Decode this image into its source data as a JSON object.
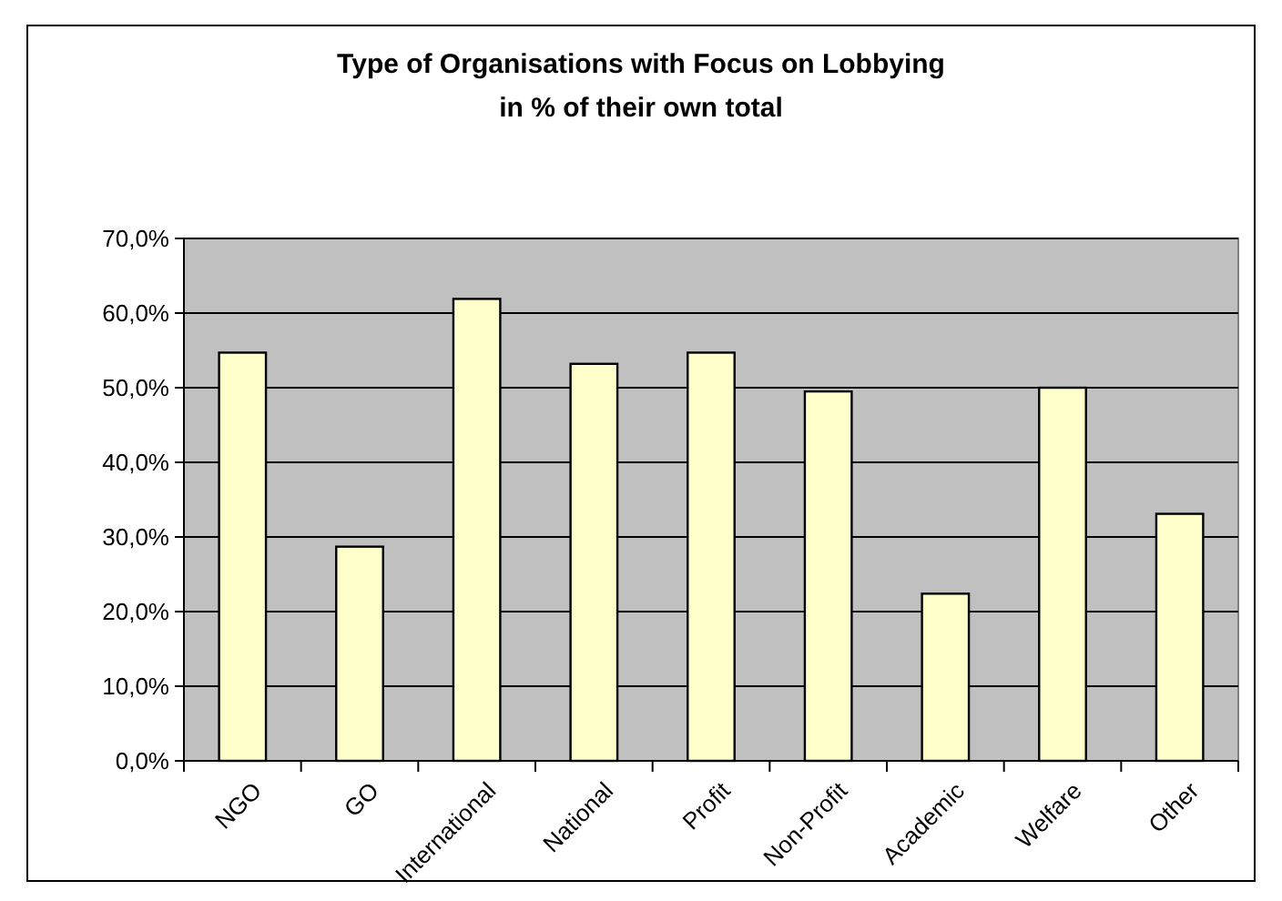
{
  "chart_data": {
    "type": "bar",
    "title": "Type of Organisations with Focus on Lobbying",
    "subtitle": "in % of their own total",
    "categories": [
      "NGO",
      "GO",
      "International",
      "National",
      "Profit",
      "Non-Profit",
      "Academic",
      "Welfare",
      "Other"
    ],
    "values": [
      54.7,
      28.7,
      61.9,
      53.2,
      54.7,
      49.5,
      22.4,
      50.0,
      33.1
    ],
    "color": "#ffffcc",
    "ylim": [
      0,
      70
    ],
    "yticks": [
      {
        "value": 0,
        "label": "0,0%"
      },
      {
        "value": 10,
        "label": "10,0%"
      },
      {
        "value": 20,
        "label": "20,0%"
      },
      {
        "value": 30,
        "label": "30,0%"
      },
      {
        "value": 40,
        "label": "40,0%"
      },
      {
        "value": 50,
        "label": "50,0%"
      },
      {
        "value": 60,
        "label": "60,0%"
      },
      {
        "value": 70,
        "label": "70,0%"
      }
    ],
    "grid": "y"
  }
}
